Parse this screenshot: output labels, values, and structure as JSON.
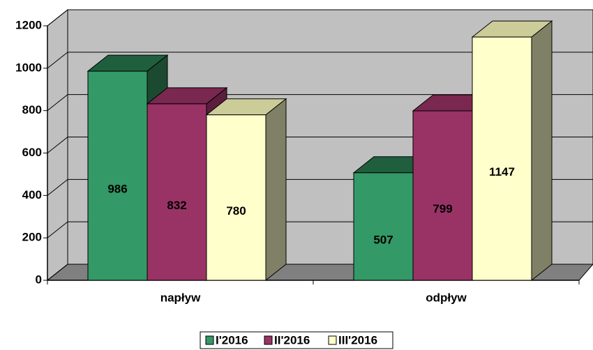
{
  "chart_data": {
    "type": "bar",
    "categories": [
      "napływ",
      "odpływ"
    ],
    "series": [
      {
        "name": "I'2016",
        "color": "#339966",
        "top": "#1f5f3d",
        "side": "#1c4a31",
        "values": [
          986,
          507
        ]
      },
      {
        "name": "II'2016",
        "color": "#993366",
        "top": "#7a2850",
        "side": "#5c1e3d",
        "values": [
          832,
          799
        ]
      },
      {
        "name": "III'2016",
        "color": "#ffffcc",
        "top": "#cccc99",
        "side": "#808066",
        "values": [
          780,
          1147
        ]
      }
    ],
    "ylim": [
      0,
      1200
    ],
    "yticks": [
      0,
      200,
      400,
      600,
      800,
      1000,
      1200
    ],
    "grid": true,
    "legend": "bottom"
  }
}
